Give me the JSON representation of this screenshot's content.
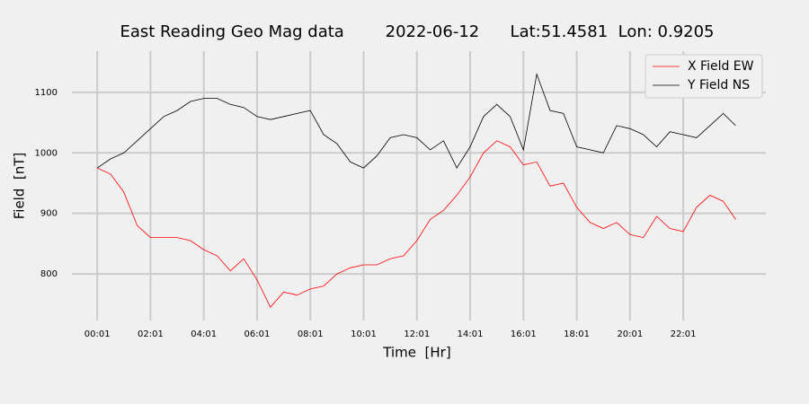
{
  "chart_data": {
    "type": "line",
    "title": "East Reading Geo Mag data        2022-06-12      Lat:51.4581  Lon: 0.9205",
    "xlabel": "Time  [Hr]",
    "ylabel": "Field  [nT]",
    "x": [
      1,
      31,
      61,
      91,
      121,
      151,
      181,
      211,
      241,
      271,
      301,
      331,
      361,
      391,
      421,
      451,
      481,
      511,
      541,
      571,
      601,
      631,
      661,
      691,
      721,
      751,
      781,
      811,
      841,
      871,
      901,
      931,
      961,
      991,
      1021,
      1051,
      1081,
      1111,
      1141,
      1171,
      1201,
      1231,
      1261,
      1291,
      1321,
      1351,
      1381,
      1411,
      1439
    ],
    "series": [
      {
        "name": "X Field EW",
        "color": "#ff0000",
        "values": [
          975,
          965,
          935,
          880,
          860,
          860,
          860,
          855,
          840,
          830,
          805,
          825,
          790,
          745,
          770,
          765,
          775,
          780,
          800,
          810,
          815,
          815,
          825,
          830,
          855,
          890,
          905,
          930,
          960,
          1000,
          1020,
          1010,
          980,
          985,
          945,
          950,
          910,
          885,
          875,
          885,
          865,
          860,
          895,
          875,
          870,
          910,
          930,
          920,
          890
        ]
      },
      {
        "name": "Y Field NS",
        "color": "#000000",
        "values": [
          975,
          990,
          1000,
          1020,
          1040,
          1060,
          1070,
          1085,
          1090,
          1090,
          1080,
          1075,
          1060,
          1055,
          1060,
          1065,
          1070,
          1030,
          1015,
          985,
          975,
          995,
          1025,
          1030,
          1025,
          1005,
          1020,
          975,
          1010,
          1060,
          1080,
          1060,
          1005,
          1130,
          1070,
          1065,
          1010,
          1005,
          1000,
          1045,
          1040,
          1030,
          1010,
          1035,
          1030,
          1025,
          1045,
          1065,
          1045
        ]
      }
    ],
    "xlim": [
      -56,
      1507
    ],
    "ylim": [
      723,
      1168
    ],
    "xticks": [
      {
        "value": 1,
        "label": "00:01"
      },
      {
        "value": 121,
        "label": "02:01"
      },
      {
        "value": 241,
        "label": "04:01"
      },
      {
        "value": 361,
        "label": "06:01"
      },
      {
        "value": 481,
        "label": "08:01"
      },
      {
        "value": 601,
        "label": "10:01"
      },
      {
        "value": 721,
        "label": "12:01"
      },
      {
        "value": 841,
        "label": "14:01"
      },
      {
        "value": 961,
        "label": "16:01"
      },
      {
        "value": 1081,
        "label": "18:01"
      },
      {
        "value": 1201,
        "label": "20:01"
      },
      {
        "value": 1321,
        "label": "22:01"
      }
    ],
    "yticks": [
      800,
      900,
      1000,
      1100
    ],
    "grid": true,
    "legend": "upper right"
  }
}
